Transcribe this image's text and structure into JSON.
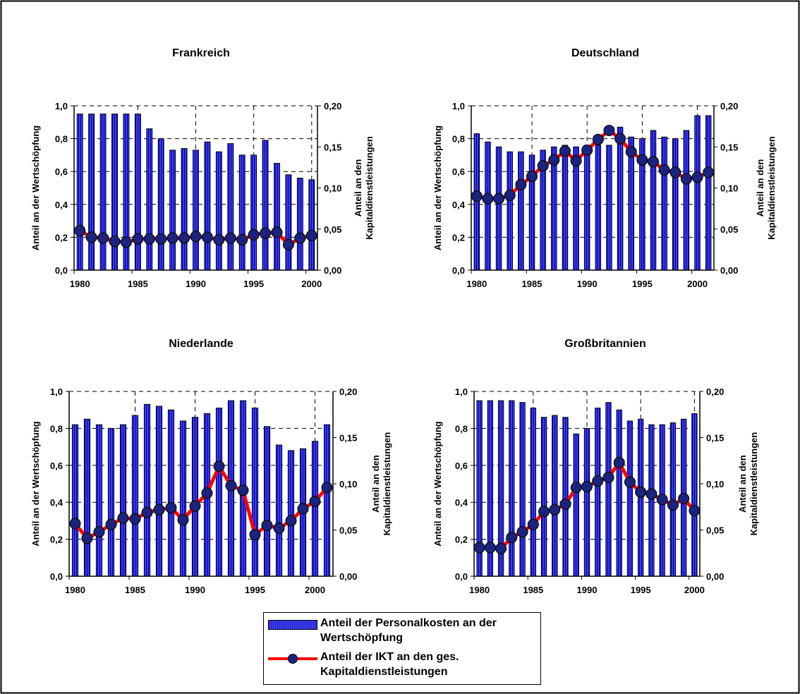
{
  "legend": {
    "bars_label": "Anteil der Personalkosten an der Wertschöpfung",
    "line_label": "Anteil der IKT an den ges. Kapitaldienstleistungen"
  },
  "colors": {
    "bar": "#3b3bff",
    "line": "#ff0000",
    "marker": "#1a237e"
  },
  "chart_data": [
    {
      "type": "bar",
      "title": "Frankreich",
      "ylabel": "Anteil an der Wertschöpfung",
      "y2label": "Anteil an den Kapitaldienstleistungen",
      "ylim": [
        0,
        1.0
      ],
      "y2lim": [
        0,
        0.2
      ],
      "yticks": [
        "0,0",
        "0,2",
        "0,4",
        "0,6",
        "0,8",
        "1,0"
      ],
      "y2ticks": [
        "0,00",
        "0,05",
        "0,10",
        "0,15",
        "0,20"
      ],
      "xticks": [
        "1980",
        "1985",
        "1990",
        "1995",
        "2000"
      ],
      "x": [
        1980,
        1981,
        1982,
        1983,
        1984,
        1985,
        1986,
        1987,
        1988,
        1989,
        1990,
        1991,
        1992,
        1993,
        1994,
        1995,
        1996,
        1997,
        1998,
        1999,
        2000
      ],
      "series": [
        {
          "name": "Anteil der Personalkosten an der Wertschöpfung",
          "axis": "left",
          "kind": "bar",
          "values": [
            0.95,
            0.95,
            0.95,
            0.95,
            0.95,
            0.95,
            0.86,
            0.8,
            0.73,
            0.74,
            0.73,
            0.78,
            0.72,
            0.77,
            0.7,
            0.7,
            0.79,
            0.65,
            0.58,
            0.56,
            0.55
          ]
        },
        {
          "name": "Anteil der IKT an den ges. Kapitaldienstleistungen",
          "axis": "right",
          "kind": "line",
          "values": [
            0.048,
            0.04,
            0.039,
            0.035,
            0.034,
            0.038,
            0.038,
            0.038,
            0.039,
            0.039,
            0.041,
            0.04,
            0.037,
            0.039,
            0.037,
            0.043,
            0.045,
            0.046,
            0.031,
            0.039,
            0.042
          ]
        }
      ]
    },
    {
      "type": "bar",
      "title": "Deutschland",
      "ylabel": "Anteil an der Wertschöpfung",
      "y2label": "Anteil an den Kapitaldienstleistungen",
      "ylim": [
        0,
        1.0
      ],
      "y2lim": [
        0,
        0.2
      ],
      "yticks": [
        "0,0",
        "0,2",
        "0,4",
        "0,6",
        "0,8",
        "1,0"
      ],
      "y2ticks": [
        "0,00",
        "0,05",
        "0,10",
        "0,15",
        "0,20"
      ],
      "xticks": [
        "1980",
        "1985",
        "1990",
        "1995",
        "2000"
      ],
      "x": [
        1980,
        1981,
        1982,
        1983,
        1984,
        1985,
        1986,
        1987,
        1988,
        1989,
        1990,
        1991,
        1992,
        1993,
        1994,
        1995,
        1996,
        1997,
        1998,
        1999,
        2000,
        2001
      ],
      "series": [
        {
          "name": "Anteil der Personalkosten an der Wertschöpfung",
          "axis": "left",
          "kind": "bar",
          "values": [
            0.83,
            0.78,
            0.75,
            0.72,
            0.72,
            0.7,
            0.73,
            0.75,
            0.76,
            0.75,
            0.76,
            0.76,
            0.76,
            0.87,
            0.81,
            0.8,
            0.85,
            0.81,
            0.8,
            0.85,
            0.94,
            0.94
          ]
        },
        {
          "name": "Anteil der IKT an den ges. Kapitaldienstleistungen",
          "axis": "right",
          "kind": "line",
          "values": [
            0.09,
            0.087,
            0.087,
            0.091,
            0.104,
            0.114,
            0.127,
            0.134,
            0.145,
            0.133,
            0.146,
            0.159,
            0.17,
            0.16,
            0.144,
            0.134,
            0.132,
            0.122,
            0.119,
            0.111,
            0.113,
            0.119
          ]
        }
      ]
    },
    {
      "type": "bar",
      "title": "Niederlande",
      "ylabel": "Anteil an der Wertschöpfung",
      "y2label": "Anteil an den Kapitaldienstleistungen",
      "ylim": [
        0,
        1.0
      ],
      "y2lim": [
        0,
        0.2
      ],
      "yticks": [
        "0,0",
        "0,2",
        "0,4",
        "0,6",
        "0,8",
        "1,0"
      ],
      "y2ticks": [
        "0,00",
        "0,05",
        "0,10",
        "0,15",
        "0,20"
      ],
      "xticks": [
        "1980",
        "1985",
        "1990",
        "1995",
        "2000"
      ],
      "x": [
        1980,
        1981,
        1982,
        1983,
        1984,
        1985,
        1986,
        1987,
        1988,
        1989,
        1990,
        1991,
        1992,
        1993,
        1994,
        1995,
        1996,
        1997,
        1998,
        1999,
        2000,
        2001
      ],
      "series": [
        {
          "name": "Anteil der Personalkosten an der Wertschöpfung",
          "axis": "left",
          "kind": "bar",
          "values": [
            0.82,
            0.85,
            0.82,
            0.8,
            0.82,
            0.87,
            0.93,
            0.92,
            0.9,
            0.84,
            0.86,
            0.88,
            0.91,
            0.95,
            0.95,
            0.91,
            0.81,
            0.71,
            0.68,
            0.69,
            0.73,
            0.82
          ]
        },
        {
          "name": "Anteil der IKT an den ges. Kapitaldienstleistungen",
          "axis": "right",
          "kind": "line",
          "values": [
            0.057,
            0.041,
            0.048,
            0.056,
            0.063,
            0.062,
            0.069,
            0.072,
            0.074,
            0.061,
            0.076,
            0.09,
            0.119,
            0.098,
            0.093,
            0.045,
            0.055,
            0.052,
            0.06,
            0.073,
            0.081,
            0.096
          ]
        }
      ]
    },
    {
      "type": "bar",
      "title": "Großbritannien",
      "ylabel": "Anteil an der Wertschöpfung",
      "y2label": "Anteil an den Kapitaldienstleistungen",
      "ylim": [
        0,
        1.0
      ],
      "y2lim": [
        0,
        0.2
      ],
      "yticks": [
        "0,0",
        "0,2",
        "0,4",
        "0,6",
        "0,8",
        "1,0"
      ],
      "y2ticks": [
        "0,00",
        "0,05",
        "0,10",
        "0,15",
        "0,20"
      ],
      "xticks": [
        "1980",
        "1985",
        "1990",
        "1995",
        "2000"
      ],
      "x": [
        1980,
        1981,
        1982,
        1983,
        1984,
        1985,
        1986,
        1987,
        1988,
        1989,
        1990,
        1991,
        1992,
        1993,
        1994,
        1995,
        1996,
        1997,
        1998,
        1999,
        2000
      ],
      "series": [
        {
          "name": "Anteil der Personalkosten an der Wertschöpfung",
          "axis": "left",
          "kind": "bar",
          "values": [
            0.95,
            0.95,
            0.95,
            0.95,
            0.94,
            0.91,
            0.86,
            0.87,
            0.86,
            0.77,
            0.8,
            0.91,
            0.94,
            0.9,
            0.84,
            0.85,
            0.82,
            0.82,
            0.83,
            0.85,
            0.88
          ]
        },
        {
          "name": "Anteil der IKT an den ges. Kapitaldienstleistungen",
          "axis": "right",
          "kind": "line",
          "values": [
            0.031,
            0.031,
            0.03,
            0.042,
            0.048,
            0.056,
            0.07,
            0.072,
            0.078,
            0.096,
            0.097,
            0.103,
            0.107,
            0.123,
            0.102,
            0.091,
            0.089,
            0.083,
            0.077,
            0.084,
            0.071
          ]
        }
      ]
    }
  ]
}
